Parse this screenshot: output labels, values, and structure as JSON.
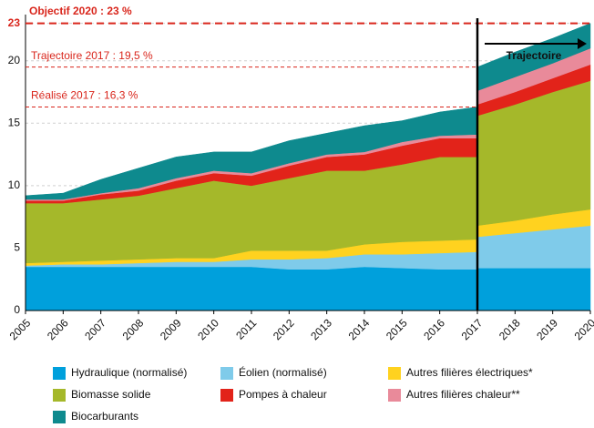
{
  "chart_data": {
    "type": "stacked-area",
    "x": [
      2005,
      2006,
      2007,
      2008,
      2009,
      2010,
      2011,
      2012,
      2013,
      2014,
      2015,
      2016,
      2017,
      2017,
      2018,
      2019,
      2020
    ],
    "xticks": [
      2005,
      2006,
      2007,
      2008,
      2009,
      2010,
      2011,
      2012,
      2013,
      2014,
      2015,
      2016,
      2017,
      2018,
      2019,
      2020
    ],
    "xlim": [
      2005,
      2020
    ],
    "ylim": [
      0,
      23.7
    ],
    "yticks": [
      0,
      5,
      10,
      15,
      20,
      23
    ],
    "series": [
      {
        "name": "Hydraulique (normalisé)",
        "color": "#00a0dc",
        "values": [
          3.5,
          3.5,
          3.5,
          3.5,
          3.5,
          3.5,
          3.5,
          3.3,
          3.3,
          3.5,
          3.4,
          3.3,
          3.3,
          3.4,
          3.4,
          3.4,
          3.4
        ]
      },
      {
        "name": "Éolien (normalisé)",
        "color": "#7fcbea",
        "values": [
          0.1,
          0.2,
          0.2,
          0.3,
          0.4,
          0.4,
          0.6,
          0.8,
          0.9,
          1.0,
          1.1,
          1.3,
          1.4,
          2.5,
          2.8,
          3.1,
          3.4
        ]
      },
      {
        "name": "Autres filières électriques*",
        "color": "#ffd21f",
        "values": [
          0.2,
          0.2,
          0.3,
          0.3,
          0.3,
          0.3,
          0.7,
          0.7,
          0.6,
          0.8,
          1.0,
          1.0,
          1.0,
          0.9,
          1.0,
          1.2,
          1.3
        ]
      },
      {
        "name": "Biomasse solide",
        "color": "#a5b82a",
        "values": [
          4.8,
          4.7,
          4.9,
          5.1,
          5.6,
          6.2,
          5.2,
          5.8,
          6.4,
          5.9,
          6.2,
          6.7,
          6.6,
          8.8,
          9.3,
          9.8,
          10.3
        ]
      },
      {
        "name": "Pompes à chaleur",
        "color": "#e2231a",
        "values": [
          0.2,
          0.2,
          0.4,
          0.4,
          0.6,
          0.6,
          0.8,
          1.0,
          1.1,
          1.3,
          1.5,
          1.5,
          1.5,
          0.9,
          1.0,
          1.1,
          1.3
        ]
      },
      {
        "name": "Autres filières chaleur**",
        "color": "#e98a9a",
        "values": [
          0.1,
          0.1,
          0.1,
          0.2,
          0.2,
          0.2,
          0.2,
          0.2,
          0.2,
          0.2,
          0.3,
          0.2,
          0.3,
          1.1,
          1.2,
          1.2,
          1.3
        ]
      },
      {
        "name": "Biocarburants",
        "color": "#0e8a8e",
        "values": [
          0.3,
          0.5,
          1.1,
          1.6,
          1.7,
          1.5,
          1.7,
          1.8,
          1.7,
          2.1,
          1.7,
          1.9,
          2.2,
          1.9,
          2.0,
          2.0,
          2.0
        ]
      }
    ],
    "reference_lines": [
      {
        "label": "Objectif 2020 : 23 %",
        "value": 23
      },
      {
        "label": "Trajectoire 2017 : 19,5 %",
        "value": 19.5
      },
      {
        "label": "Réalisé 2017 : 16,3 %",
        "value": 16.3
      }
    ],
    "annotation": "Trajectoire"
  }
}
